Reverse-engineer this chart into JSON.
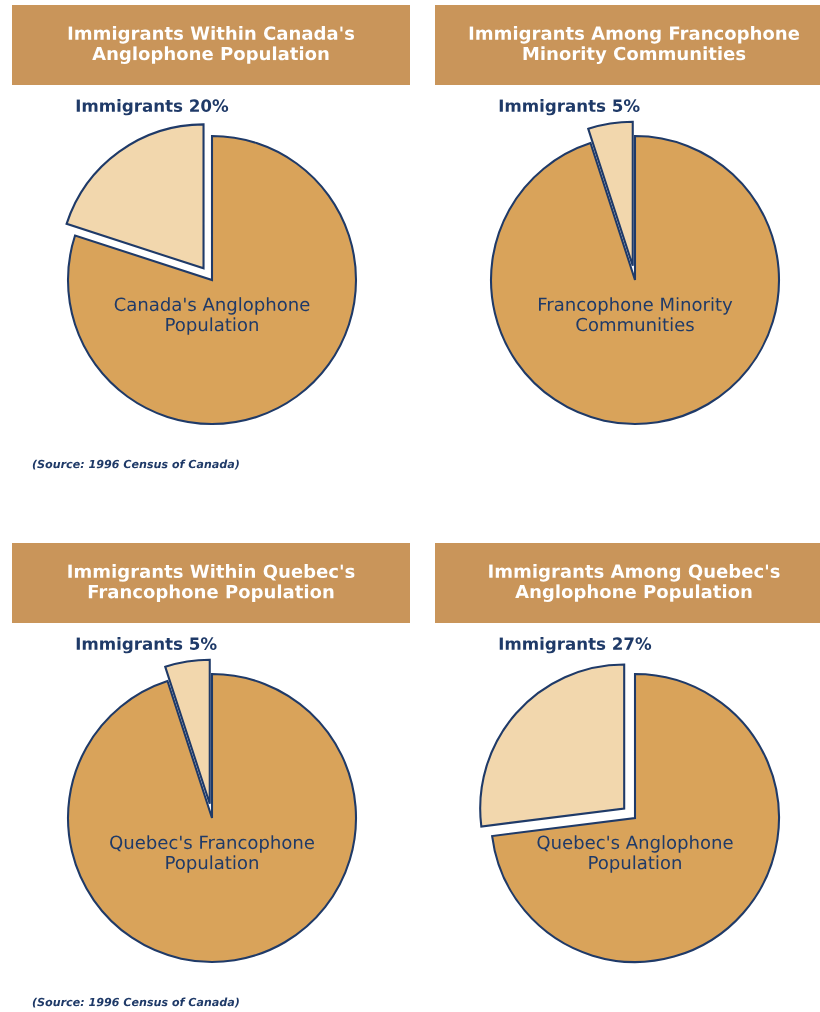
{
  "chart_data": [
    {
      "type": "pie",
      "title": "Immigrants Within Canada's Anglophone Population",
      "categories": [
        "Immigrants",
        "Canada's Anglophone Population"
      ],
      "values": [
        20,
        80
      ],
      "value_labels": [
        "20%",
        null
      ],
      "colors": [
        "#f2d7ad",
        "#d9a35a"
      ],
      "annotations": [
        "(Source: 1996 Census of Canada)"
      ]
    },
    {
      "type": "pie",
      "title": "Immigrants Among Francophone Minority Communities",
      "categories": [
        "Immigrants",
        "Francophone Minority Communities"
      ],
      "values": [
        5,
        95
      ],
      "value_labels": [
        "5%",
        null
      ],
      "colors": [
        "#f2d7ad",
        "#d9a35a"
      ]
    },
    {
      "type": "pie",
      "title": "Immigrants Within Quebec's Francophone Population",
      "categories": [
        "Immigrants",
        "Quebec's Francophone Population"
      ],
      "values": [
        5,
        95
      ],
      "value_labels": [
        "5%",
        null
      ],
      "colors": [
        "#f2d7ad",
        "#d9a35a"
      ],
      "annotations": [
        "(Source: 1996 Census of Canada)"
      ]
    },
    {
      "type": "pie",
      "title": "Immigrants Among Quebec's Anglophone Population",
      "categories": [
        "Immigrants",
        "Quebec's Anglophone Population"
      ],
      "values": [
        27,
        73
      ],
      "value_labels": [
        "27%",
        null
      ],
      "colors": [
        "#f2d7ad",
        "#d9a35a"
      ]
    }
  ]
}
